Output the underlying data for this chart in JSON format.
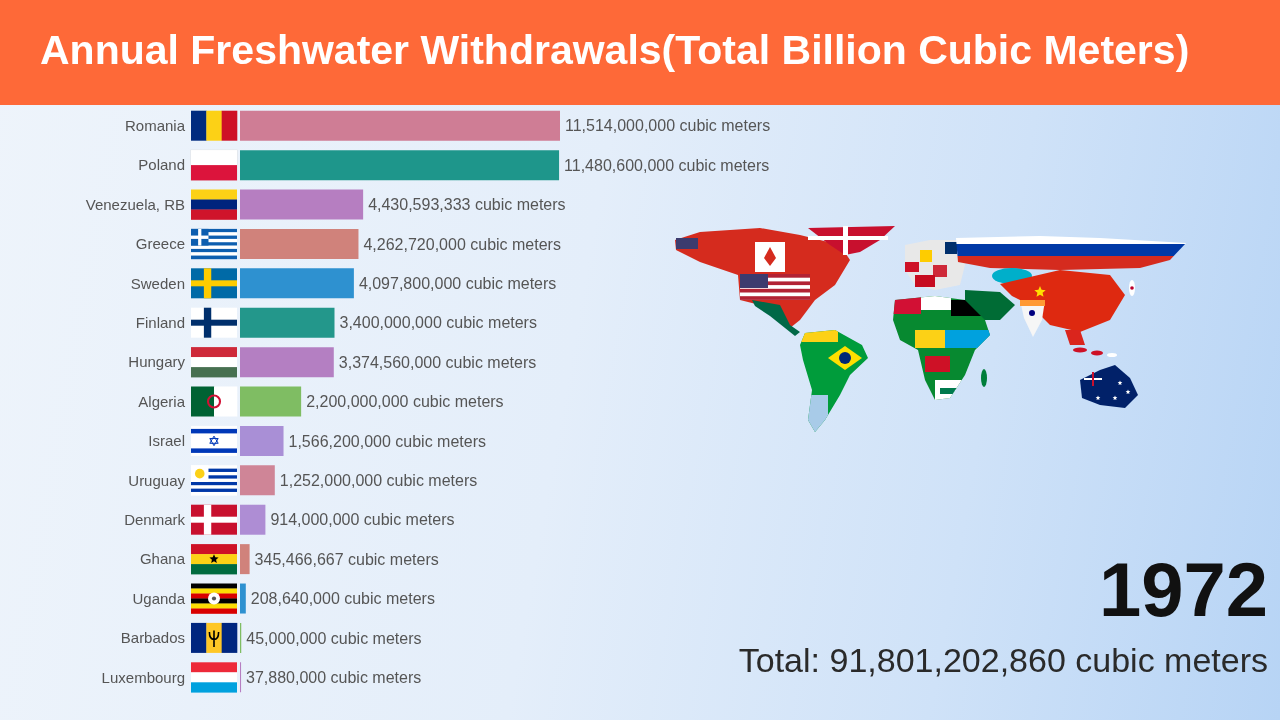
{
  "chart_data": {
    "type": "bar",
    "title": "Annual Freshwater Withdrawals(Total Billion Cubic Meters)",
    "orientation": "horizontal",
    "tick_labels": "y",
    "categories": [
      "Romania",
      "Poland",
      "Venezuela, RB",
      "Greece",
      "Sweden",
      "Finland",
      "Hungary",
      "Algeria",
      "Israel",
      "Uruguay",
      "Denmark",
      "Ghana",
      "Uganda",
      "Barbados",
      "Luxembourg"
    ],
    "values": [
      11514000000,
      11480600000,
      4430593333,
      4262720000,
      4097800000,
      3400000000,
      3374560000,
      2200000000,
      1566200000,
      1252000000,
      914000000,
      345466667,
      208640000,
      45000000,
      37880000
    ],
    "colors": [
      "#cf7d95",
      "#1e968b",
      "#b67ec1",
      "#d0827b",
      "#2e91d0",
      "#23978b",
      "#b47fc2",
      "#7fbd63",
      "#a98fd6",
      "#cf8597",
      "#ae8dd4",
      "#d0827b",
      "#2e91d0",
      "#7fbd63",
      "#b67ec1"
    ],
    "value_labels": [
      "11,514,000,000 cubic meters",
      "11,480,600,000 cubic meters",
      "4,430,593,333 cubic meters",
      "4,262,720,000 cubic meters",
      "4,097,800,000 cubic meters",
      "3,400,000,000 cubic meters",
      "3,374,560,000 cubic meters",
      "2,200,000,000 cubic meters",
      "1,566,200,000 cubic meters",
      "1,252,000,000 cubic meters",
      "914,000,000 cubic meters",
      "345,466,667 cubic meters",
      "208,640,000 cubic meters",
      "45,000,000 cubic meters",
      "37,880,000 cubic meters"
    ],
    "annotations": [
      "1972",
      "Total: 91,801,202,860 cubic meters"
    ]
  }
}
